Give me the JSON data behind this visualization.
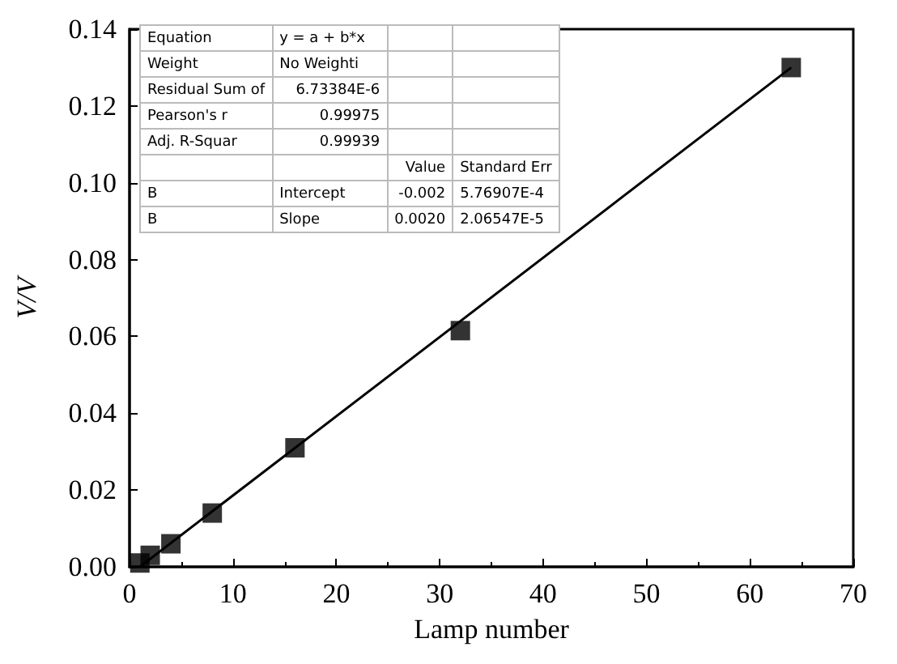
{
  "chart_data": {
    "type": "scatter",
    "xlabel": "Lamp number",
    "ylabel": "V/V",
    "x": [
      1,
      2,
      4,
      8,
      16,
      32,
      64
    ],
    "series": [
      {
        "color": "#000000",
        "marker": "square",
        "values": [
          0.001,
          0.003,
          0.006,
          0.014,
          0.031,
          0.0615,
          0.13
        ]
      },
      {
        "type": "line",
        "color": "#000000",
        "x": [
          1,
          64
        ],
        "values": [
          0.0,
          0.13
        ],
        "line_style": "solid"
      }
    ],
    "xlim": [
      0,
      70
    ],
    "xticks": [
      0,
      10,
      20,
      30,
      40,
      50,
      60,
      70
    ],
    "ylim": [
      0,
      0.14
    ],
    "yticks": [
      {
        "value": 0,
        "label": "0.00"
      },
      0.02,
      0.04,
      0.06,
      0.08,
      {
        "value": 0.1,
        "label": "0.10"
      },
      0.12,
      0.14
    ],
    "grid": false,
    "annotations": [
      "Equation",
      "y = a + b*x",
      "Weight",
      "No Weighti",
      "Residual Sum of",
      "6.73384E-6",
      "Pearson's r",
      "0.99975",
      "Adj. R-Squar",
      "0.99939",
      "Value",
      "Standard Err",
      "B",
      "Intercept",
      "-0.002",
      "5.76907E-4",
      "B",
      "Slope",
      "0.0020",
      "2.06547E-5"
    ]
  }
}
